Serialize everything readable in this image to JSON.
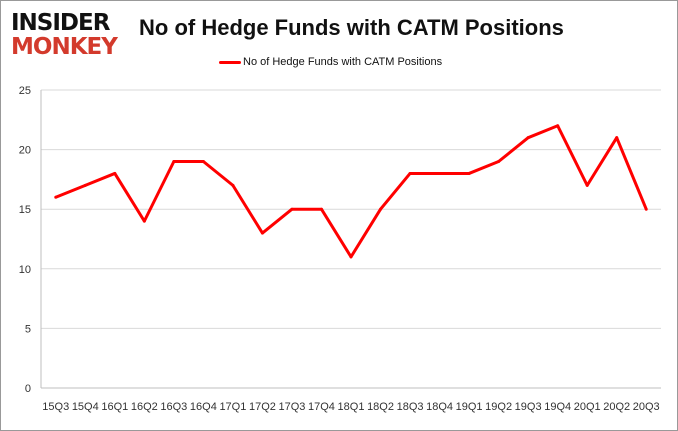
{
  "logo": {
    "line1": "INSIDER",
    "line2": "MONKEY"
  },
  "chart_data": {
    "type": "line",
    "title": "No of Hedge Funds with CATM Positions",
    "categories": [
      "15Q3",
      "15Q4",
      "16Q1",
      "16Q2",
      "16Q3",
      "16Q4",
      "17Q1",
      "17Q2",
      "17Q3",
      "17Q4",
      "18Q1",
      "18Q2",
      "18Q3",
      "18Q4",
      "19Q1",
      "19Q2",
      "19Q3",
      "19Q4",
      "20Q1",
      "20Q2",
      "20Q3"
    ],
    "series": [
      {
        "name": "No of Hedge Funds with CATM Positions",
        "color": "#ff0000",
        "values": [
          16,
          17,
          18,
          14,
          19,
          19,
          17,
          13,
          15,
          15,
          11,
          15,
          18,
          18,
          18,
          19,
          21,
          22,
          17,
          21,
          15
        ]
      }
    ],
    "ylim": [
      0,
      25
    ],
    "yticks": [
      0,
      5,
      10,
      15,
      20,
      25
    ],
    "grid": true,
    "legend": "top-center"
  }
}
